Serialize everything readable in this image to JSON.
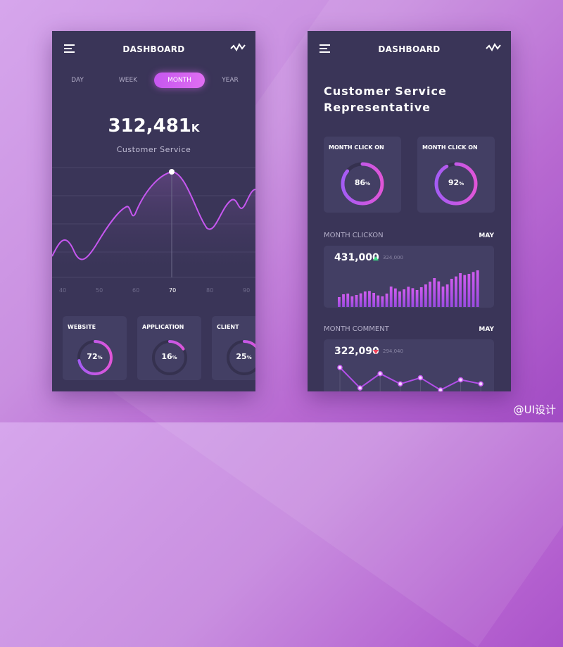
{
  "left": {
    "header": {
      "title": "DASHBOARD",
      "menu_icon": "hamburger-icon",
      "right_icon": "activity-icon"
    },
    "tabs": [
      {
        "label": "DAY"
      },
      {
        "label": "WEEK"
      },
      {
        "label": "MONTH",
        "active": true
      },
      {
        "label": "YEAR"
      }
    ],
    "headline": {
      "value": "312,481",
      "unit": "K",
      "label": "Customer Service"
    },
    "chart_data": {
      "type": "area",
      "x_ticks": [
        "40",
        "50",
        "60",
        "70",
        "80",
        "90"
      ],
      "highlight": "70",
      "accent": "#c657f0"
    },
    "cards": [
      {
        "label": "WEBSITE",
        "percent": "72",
        "unit": "%",
        "value": 72
      },
      {
        "label": "APPLICATION",
        "percent": "16",
        "unit": "%",
        "value": 16
      },
      {
        "label": "CLIENT",
        "percent": "25",
        "unit": "%",
        "value": 25
      }
    ]
  },
  "right": {
    "header": {
      "title": "DASHBOARD"
    },
    "heading": [
      "Customer Service",
      "Representative"
    ],
    "gauges": [
      {
        "label": "MONTH CLICK ON",
        "percent": "86",
        "unit": "%",
        "value": 86
      },
      {
        "label": "MONTH CLICK ON",
        "percent": "92",
        "unit": "%",
        "value": 92
      }
    ],
    "clickon": {
      "title": "MONTH CLICKON",
      "period": "MAY",
      "value": "431,000",
      "trend": "up",
      "previous": "324,000",
      "bars": [
        42,
        54,
        57,
        45,
        51,
        58,
        66,
        68,
        60,
        49,
        45,
        57,
        87,
        79,
        66,
        75,
        86,
        80,
        72,
        84,
        96,
        108,
        123,
        109,
        87,
        96,
        120,
        130,
        144,
        136,
        141,
        149,
        156
      ]
    },
    "comment": {
      "title": "MONTH COMMENT",
      "period": "MAY",
      "value": "322,090",
      "trend": "down",
      "previous": "294,040",
      "points": [
        100,
        50,
        85,
        60,
        75,
        45,
        70,
        60
      ]
    },
    "colors": {
      "up": "#3ddc84",
      "down": "#f0435a",
      "bar": "#c657f0"
    }
  },
  "watermark": "@UI设计"
}
